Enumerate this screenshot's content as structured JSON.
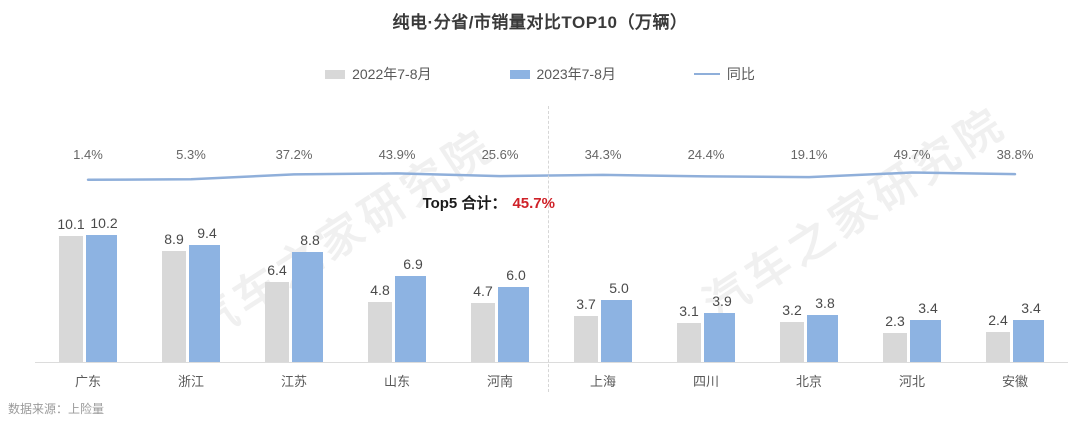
{
  "title": "纯电·分省/市销量对比TOP10（万辆）",
  "legend": [
    {
      "label": "2022年7-8月",
      "type": "bar",
      "color": "#d8d8d8"
    },
    {
      "label": "2023年7-8月",
      "type": "bar",
      "color": "#8db3e2"
    },
    {
      "label": "同比",
      "type": "line",
      "color": "#8fafda"
    }
  ],
  "annotation": {
    "label": "Top5 合计：",
    "value": "45.7%",
    "value_color": "#cf2128"
  },
  "watermark": "汽车之家研究院",
  "source": "数据来源：上险量",
  "colors": {
    "bar_2022": "#d8d8d8",
    "bar_2023": "#8db3e2",
    "trend_line": "#8fafda",
    "highlight_red": "#cf2128"
  },
  "chart_data": {
    "type": "bar",
    "title": "纯电·分省/市销量对比TOP10（万辆）",
    "categories": [
      "广东",
      "浙江",
      "江苏",
      "山东",
      "河南",
      "上海",
      "四川",
      "北京",
      "河北",
      "安徽"
    ],
    "series": [
      {
        "name": "2022年7-8月",
        "kind": "bar",
        "color": "#d8d8d8",
        "values": [
          10.1,
          8.9,
          6.4,
          4.8,
          4.7,
          3.7,
          3.1,
          3.2,
          2.3,
          2.4
        ]
      },
      {
        "name": "2023年7-8月",
        "kind": "bar",
        "color": "#8db3e2",
        "values": [
          10.2,
          9.4,
          8.8,
          6.9,
          6.0,
          5.0,
          3.9,
          3.8,
          3.4,
          3.4
        ]
      },
      {
        "name": "同比",
        "kind": "line",
        "color": "#8fafda",
        "values_pct": [
          1.4,
          5.3,
          37.2,
          43.9,
          25.6,
          34.3,
          24.4,
          19.1,
          49.7,
          38.8
        ]
      }
    ],
    "unit": "万辆",
    "ylim": [
      0,
      12
    ],
    "grid": false,
    "legend_position": "top",
    "divider_after_index": 4,
    "annotation": "Top5 合计：45.7%"
  }
}
